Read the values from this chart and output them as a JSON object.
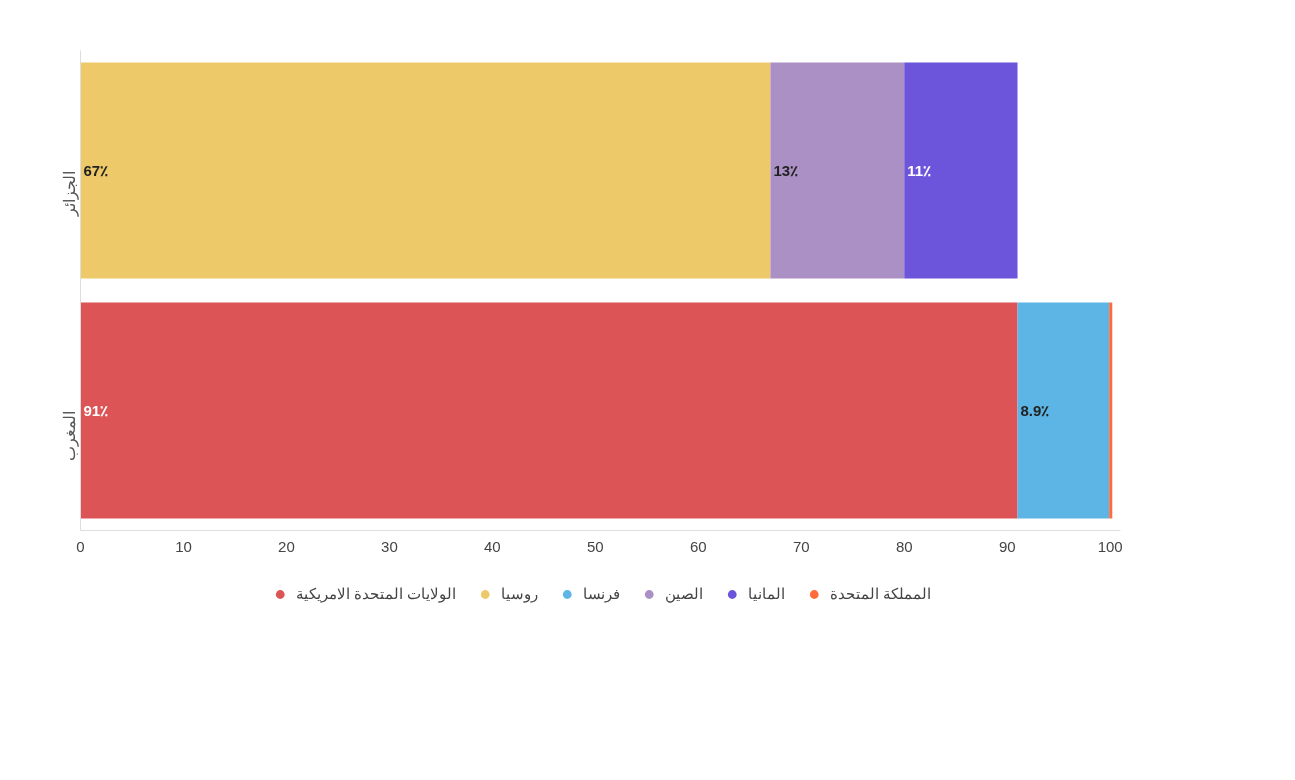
{
  "chart_data": {
    "type": "bar",
    "orientation": "horizontal",
    "stacked": true,
    "categories": [
      "الجزائر",
      "المغرب"
    ],
    "series": [
      {
        "name": "الولايات المتحدة الامريكية",
        "color": "#dc5455",
        "values": [
          null,
          91
        ],
        "value_labels": [
          null,
          "91٪"
        ]
      },
      {
        "name": "روسيا",
        "color": "#eec96a",
        "values": [
          67,
          null
        ],
        "value_labels": [
          "67٪",
          null
        ]
      },
      {
        "name": "فرنسا",
        "color": "#5db5e5",
        "values": [
          null,
          8.9
        ],
        "value_labels": [
          null,
          "8.9٪"
        ]
      },
      {
        "name": "الصين",
        "color": "#ab90c6",
        "values": [
          13,
          null
        ],
        "value_labels": [
          "13٪",
          null
        ]
      },
      {
        "name": "المانيا",
        "color": "#6d55db",
        "values": [
          11,
          null
        ],
        "value_labels": [
          "11٪",
          null
        ]
      },
      {
        "name": "المملكة المتحدة",
        "color": "#ff6b3a",
        "values": [
          null,
          0.3
        ],
        "value_labels": [
          null,
          null
        ]
      }
    ],
    "xlim": [
      0,
      101
    ],
    "xticks": [
      0,
      10,
      20,
      30,
      40,
      50,
      60,
      70,
      80,
      90,
      100
    ],
    "grid": false,
    "legend": "bottom"
  }
}
